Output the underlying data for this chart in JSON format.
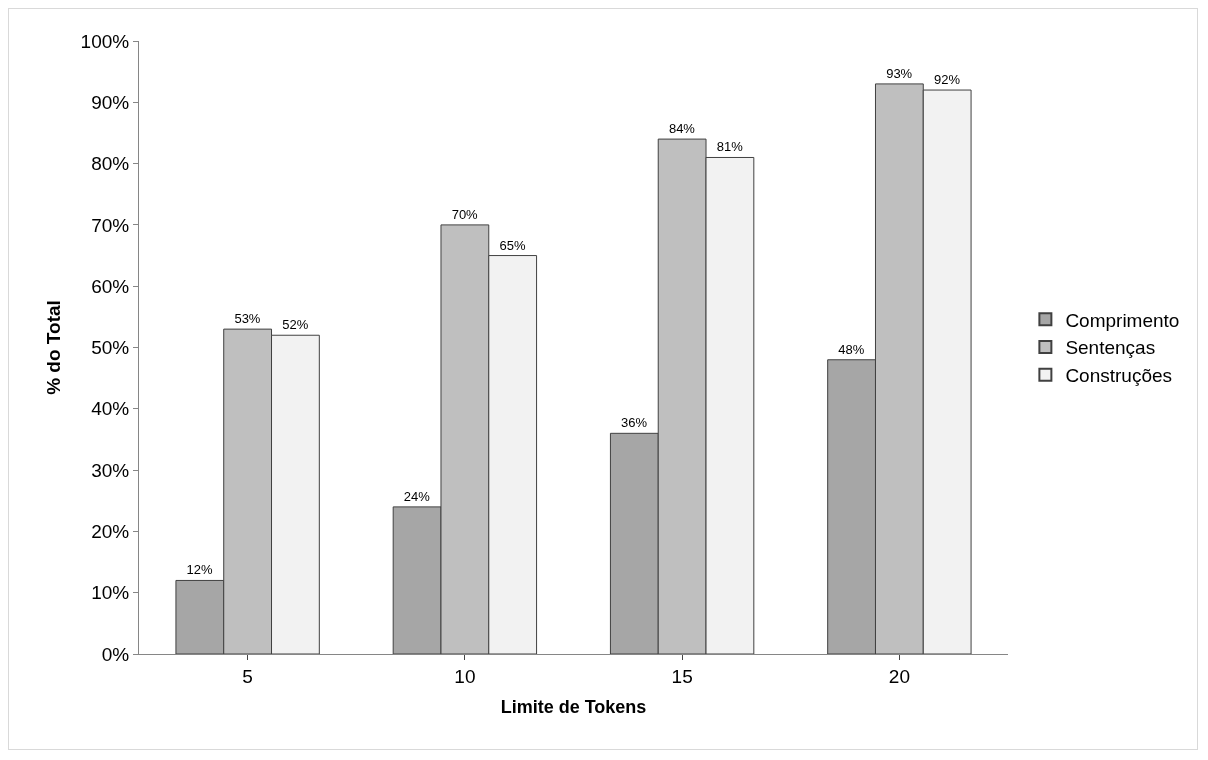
{
  "chart_data": {
    "type": "bar",
    "xlabel": "Limite de Tokens",
    "ylabel": "% do Total",
    "categories": [
      "5",
      "10",
      "15",
      "20"
    ],
    "series": [
      {
        "name": "Comprimento",
        "color": "#a6a6a6",
        "values": [
          12,
          24,
          36,
          48
        ],
        "value_labels": [
          "12%",
          "24%",
          "36%",
          "48%"
        ]
      },
      {
        "name": "Sentenças",
        "color": "#bfbfbf",
        "values": [
          53,
          70,
          84,
          93
        ],
        "value_labels": [
          "53%",
          "70%",
          "84%",
          "93%"
        ]
      },
      {
        "name": "Construções",
        "color": "#f2f2f2",
        "values": [
          52,
          65,
          81,
          92
        ],
        "value_labels": [
          "52%",
          "65%",
          "81%",
          "92%"
        ]
      }
    ],
    "ylim": [
      0,
      100
    ],
    "yticks": [
      {
        "value": 0,
        "label": "0%"
      },
      {
        "value": 10,
        "label": "10%"
      },
      {
        "value": 20,
        "label": "20%"
      },
      {
        "value": 30,
        "label": "30%"
      },
      {
        "value": 40,
        "label": "40%"
      },
      {
        "value": 50,
        "label": "50%"
      },
      {
        "value": 60,
        "label": "60%"
      },
      {
        "value": 70,
        "label": "70%"
      },
      {
        "value": 80,
        "label": "80%"
      },
      {
        "value": 90,
        "label": "90%"
      },
      {
        "value": 100,
        "label": "100%"
      }
    ],
    "grid": false,
    "legend": "right"
  }
}
